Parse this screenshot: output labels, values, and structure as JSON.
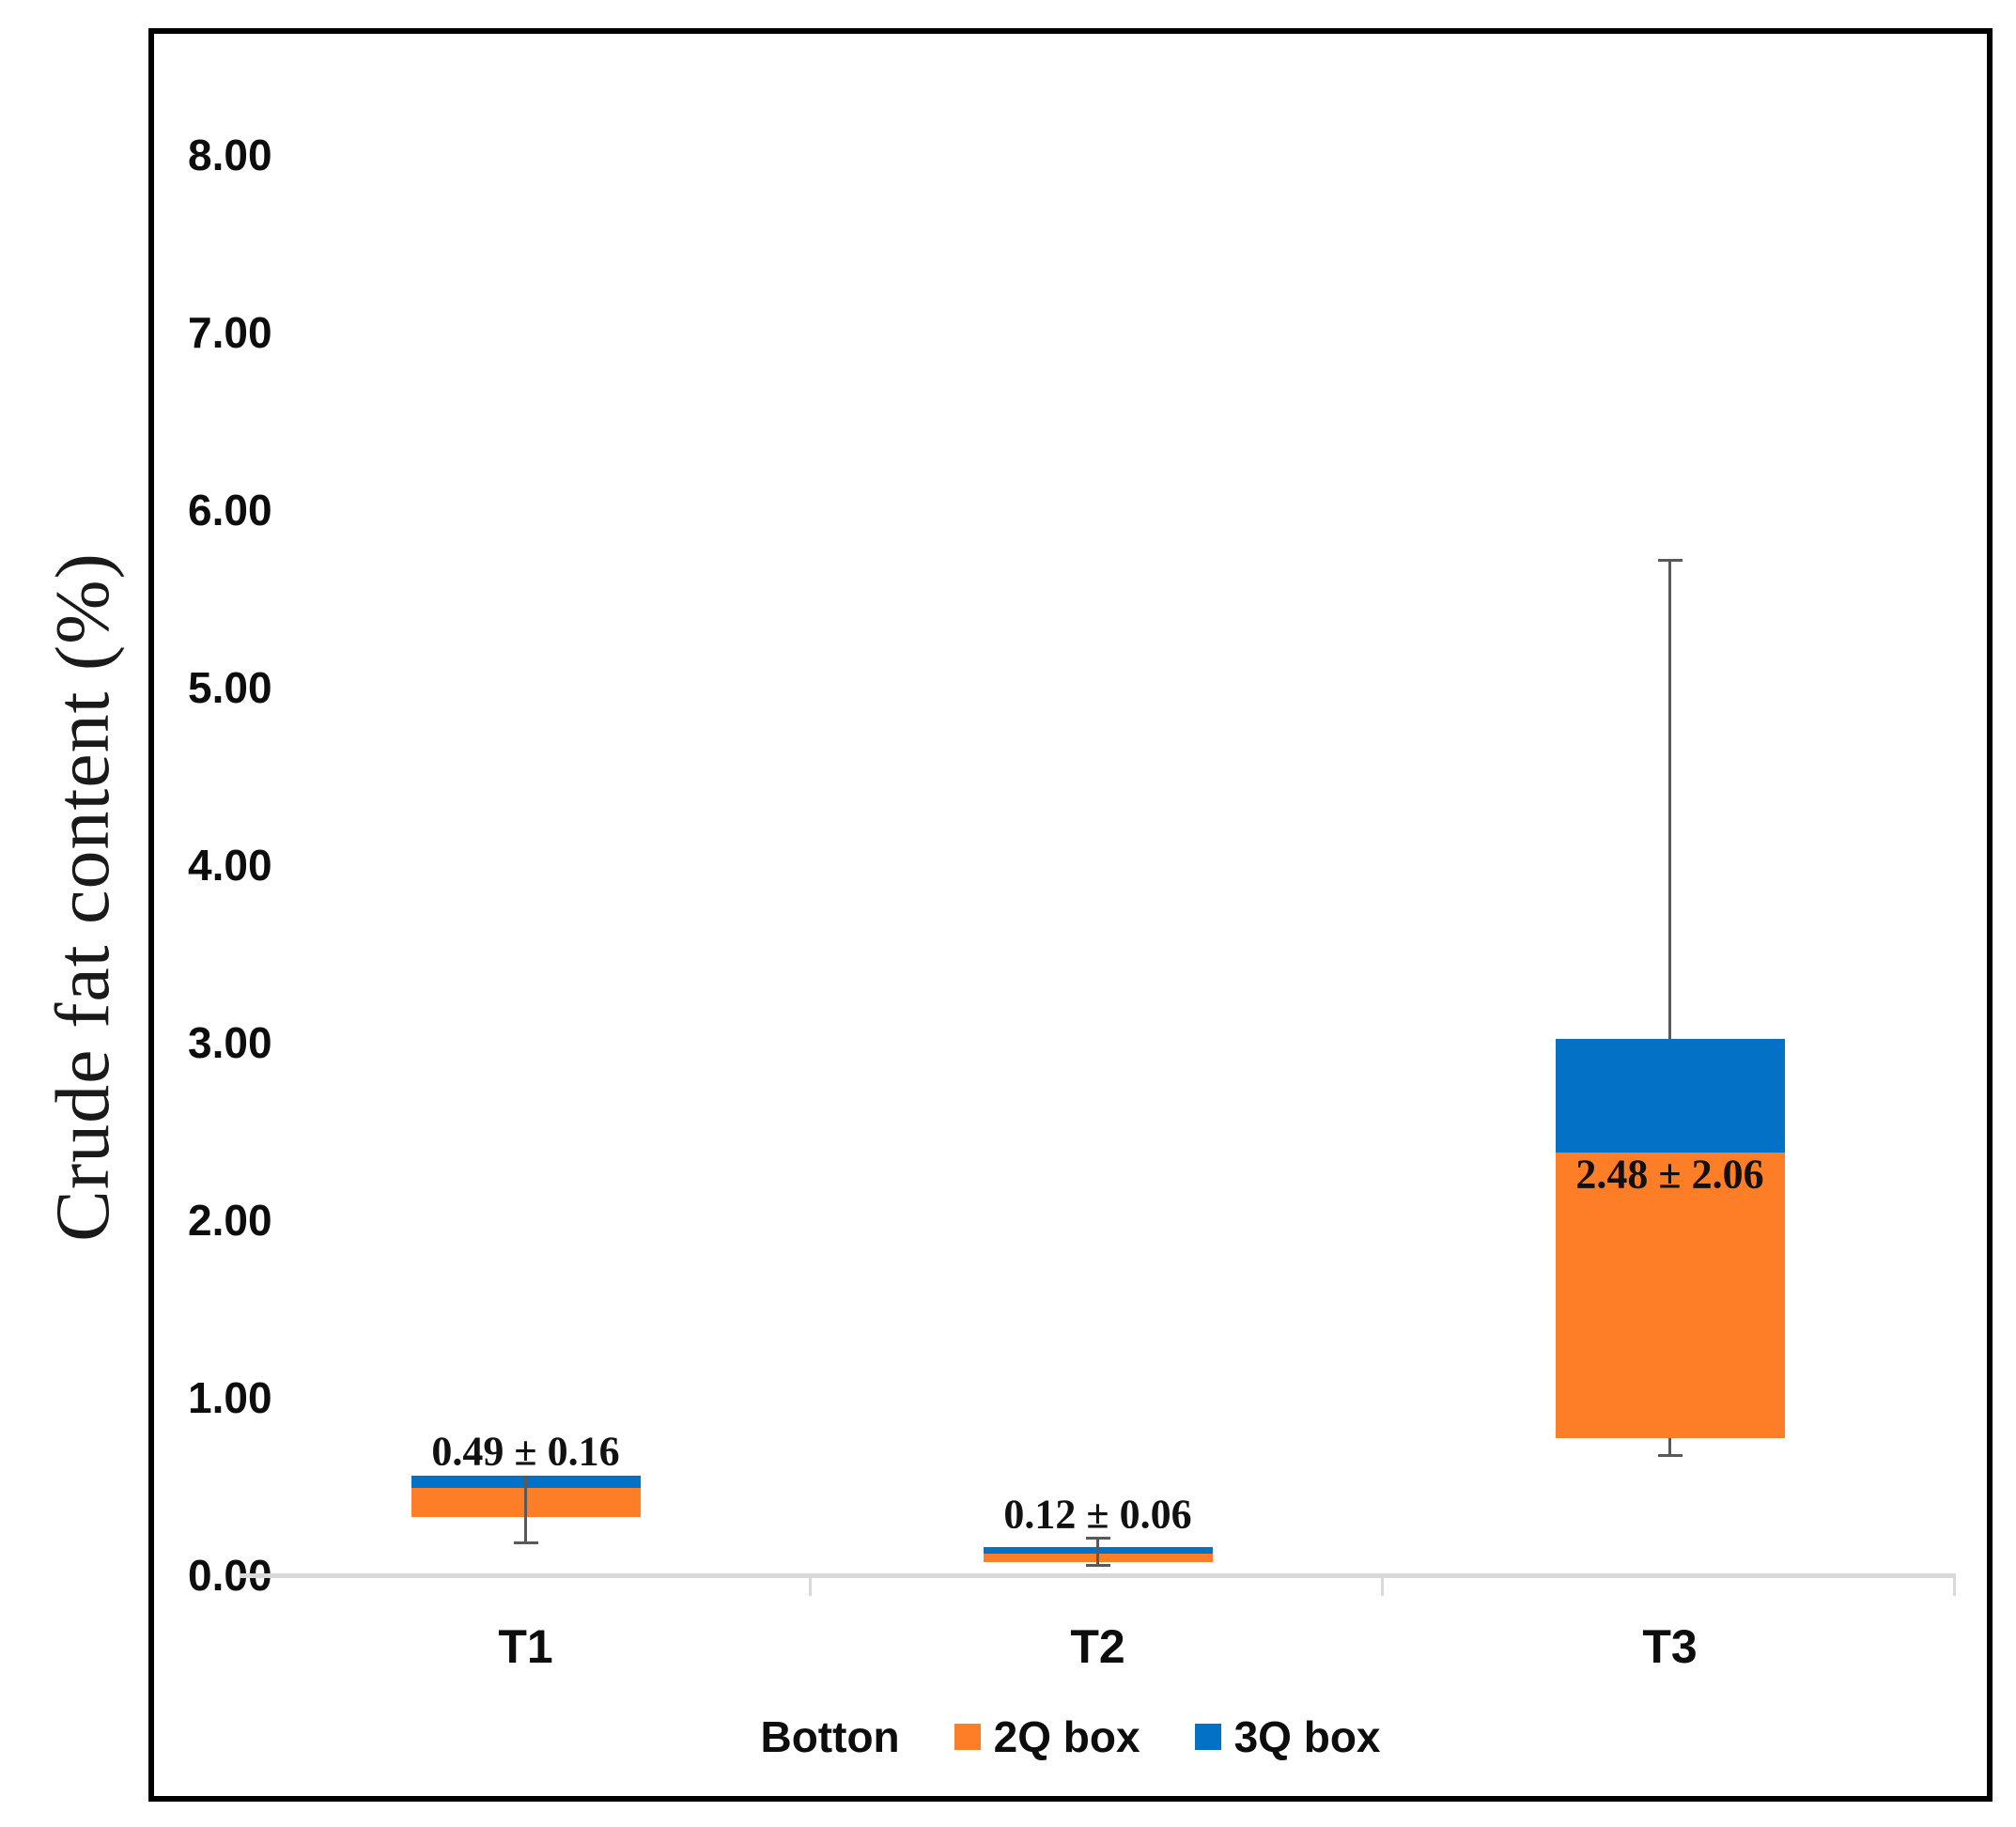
{
  "figure": {
    "background": "#FFFFFF",
    "border_color": "#000000"
  },
  "chart_data": {
    "type": "boxplot",
    "title": "",
    "ylabel": "Crude fat content (%)",
    "xlabel": "",
    "ylim": [
      0,
      8.5
    ],
    "grid": "off",
    "legend_position": "bottom-center",
    "y_axis": {
      "tick_labels": [
        "8.00",
        "7.00",
        "6.00",
        "5.00",
        "4.00",
        "3.00",
        "2.00",
        "1.00",
        "0.00"
      ],
      "tick_values": [
        8,
        7,
        6,
        5,
        4,
        3,
        2,
        1,
        0
      ]
    },
    "categories": [
      "T1",
      "T2",
      "T3"
    ],
    "legend_items": [
      {
        "label": "Botton",
        "color": null
      },
      {
        "label": "2Q box",
        "color": "#FD7E26"
      },
      {
        "label": "3Q box",
        "color": "#0271C6"
      }
    ],
    "boxes": [
      {
        "category": "T1",
        "q1": 0.33,
        "median": 0.49,
        "q3": 0.56,
        "whiskers": [
          {
            "from": 0.56,
            "to": 0.18,
            "cap": "bottom"
          }
        ],
        "annotation": "0.49 ± 0.16",
        "annotation_value": 0.7
      },
      {
        "category": "T2",
        "q1": 0.075,
        "median": 0.12,
        "q3": 0.16,
        "whiskers": [
          {
            "from": 0.21,
            "to": 0.055,
            "cap": "both"
          }
        ],
        "annotation": "0.12 ± 0.06",
        "annotation_value": 0.345
      },
      {
        "category": "T3",
        "q1": 0.77,
        "median": 2.38,
        "q3": 3.02,
        "whiskers": [
          {
            "from": 3.02,
            "to": 5.72,
            "cap": "top"
          },
          {
            "from": 0.77,
            "to": 0.67,
            "cap": "bottom"
          }
        ],
        "annotation": "2.48 ± 2.06",
        "annotation_value": 2.26
      }
    ],
    "colors": {
      "q2_box": "#FD7E26",
      "q3_box": "#0271C6",
      "whisker": "#595959",
      "axis_line": "#D9D9D9",
      "text": "#0D0D0D"
    }
  }
}
